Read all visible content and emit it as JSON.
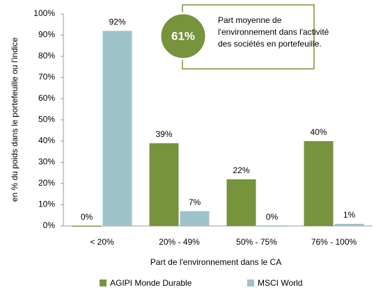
{
  "chart_data": {
    "type": "bar",
    "categories": [
      "< 20%",
      "20% - 49%",
      "50% - 75%",
      "76% - 100%"
    ],
    "series": [
      {
        "name": "AGIPI Monde Durable",
        "color": "#77933c",
        "values": [
          0,
          39,
          22,
          40
        ],
        "value_labels": [
          "0%",
          "39%",
          "22%",
          "40%"
        ]
      },
      {
        "name": "MSCI World",
        "color": "#9dc3c9",
        "values": [
          92,
          7,
          0,
          1
        ],
        "value_labels": [
          "92%",
          "7%",
          "0%",
          "1%"
        ]
      }
    ],
    "ylim": [
      0,
      100
    ],
    "yticks": [
      {
        "value": 0,
        "label": "0%"
      },
      {
        "value": 10,
        "label": "10%"
      },
      {
        "value": 20,
        "label": "20%"
      },
      {
        "value": 30,
        "label": "30%"
      },
      {
        "value": 40,
        "label": "40%"
      },
      {
        "value": 50,
        "label": "50%"
      },
      {
        "value": 60,
        "label": "60%"
      },
      {
        "value": 70,
        "label": "70%"
      },
      {
        "value": 80,
        "label": "80%"
      },
      {
        "value": 90,
        "label": "90%"
      },
      {
        "value": 100,
        "label": "100%"
      }
    ],
    "y_label": "en % du poids dans le portefeuille ou l'indice",
    "x_label": "Part de l'environnement dans le CA",
    "annotation": {
      "highlight": "61%",
      "lines": [
        "Part moyenne de",
        "l'environnement dans l'activité",
        "des sociétés en portefeuille."
      ]
    },
    "legend": "bottom",
    "grid": false
  }
}
